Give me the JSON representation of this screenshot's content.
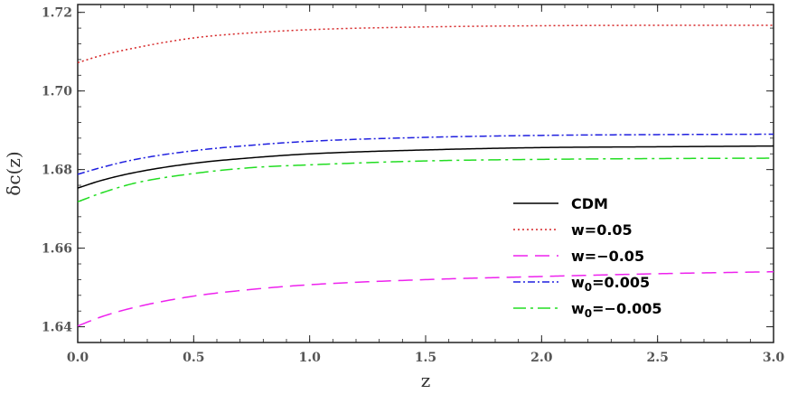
{
  "chart_data": {
    "type": "line",
    "title": "",
    "xlabel": "z",
    "ylabel": "δc(z)",
    "xlim": [
      0,
      3
    ],
    "ylim": [
      1.636,
      1.722
    ],
    "xticks": [
      "0.0",
      "0.5",
      "1.0",
      "1.5",
      "2.0",
      "2.5",
      "3.0"
    ],
    "yticks": [
      "1.64",
      "1.66",
      "1.68",
      "1.70",
      "1.72"
    ],
    "grid": false,
    "legend_position": "center-right",
    "x": [
      0,
      0.1,
      0.25,
      0.5,
      0.75,
      1.0,
      1.5,
      2.0,
      2.5,
      3.0
    ],
    "series": [
      {
        "name": "CDM",
        "sub": "",
        "name_rest": "",
        "color": "#000000",
        "dash": "solid",
        "values": [
          1.6753,
          1.6772,
          1.6793,
          1.6816,
          1.683,
          1.684,
          1.685,
          1.6856,
          1.6858,
          1.686
        ]
      },
      {
        "name": "w=0.05",
        "sub": "",
        "name_rest": "",
        "color": "#d62728",
        "dash": "dotted",
        "values": [
          1.7072,
          1.709,
          1.711,
          1.7135,
          1.7148,
          1.7156,
          1.7163,
          1.7166,
          1.7167,
          1.7167
        ]
      },
      {
        "name": "w=−0.05",
        "sub": "",
        "name_rest": "",
        "color": "#ee22ee",
        "dash": "dashed",
        "values": [
          1.6402,
          1.6425,
          1.645,
          1.6478,
          1.6495,
          1.6507,
          1.652,
          1.6528,
          1.6535,
          1.654
        ]
      },
      {
        "name": "w",
        "sub": "0",
        "name_rest": "=0.005",
        "color": "#1f1fdf",
        "dash": "dashdot",
        "values": [
          1.6788,
          1.6805,
          1.6826,
          1.6848,
          1.6862,
          1.6872,
          1.6882,
          1.6887,
          1.6889,
          1.689
        ]
      },
      {
        "name": "w",
        "sub": "0",
        "name_rest": "=−0.005",
        "color": "#22dd22",
        "dash": "longdashdot",
        "values": [
          1.6718,
          1.674,
          1.6766,
          1.679,
          1.6805,
          1.6812,
          1.6822,
          1.6826,
          1.6828,
          1.6829
        ]
      }
    ]
  }
}
